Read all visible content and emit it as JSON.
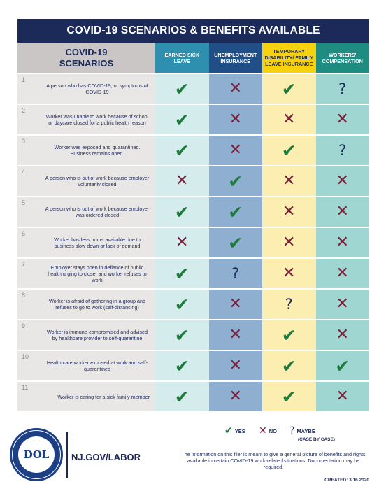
{
  "title": "COVID-19 SCENARIOS & BENEFITS AVAILABLE",
  "header": {
    "scenarios_line1": "COVID-19",
    "scenarios_line2": "SCENARIOS",
    "columns": [
      "EARNED SICK LEAVE",
      "UNEMPLOYMENT INSURANCE",
      "TEMPORARY DISABILITY/ FAMILY LEAVE INSURANCE",
      "WORKERS' COMPENSATION"
    ]
  },
  "symbols": {
    "yes": "✔",
    "no": "✕",
    "maybe": "?"
  },
  "rows": [
    {
      "num": "1",
      "text": "A person who has COVID-19, or symptoms of COVID-19",
      "marks": [
        "yes",
        "no",
        "yes",
        "maybe"
      ]
    },
    {
      "num": "2",
      "text": "Worker was unable to work because of school or daycare closed for a public health reason",
      "marks": [
        "yes",
        "no",
        "no",
        "no"
      ]
    },
    {
      "num": "3",
      "text": "Worker was exposed and quarantined. Business remains open.",
      "marks": [
        "yes",
        "no",
        "yes",
        "maybe"
      ]
    },
    {
      "num": "4",
      "text": "A person who is out of work because employer voluntarily closed",
      "marks": [
        "no",
        "yes",
        "no",
        "no"
      ]
    },
    {
      "num": "5",
      "text": "A person who is out of work because employer was ordered closed",
      "marks": [
        "yes",
        "yes",
        "no",
        "no"
      ]
    },
    {
      "num": "6",
      "text": "Worker has less hours available due to business slow down or lack of demand",
      "marks": [
        "no",
        "yes",
        "no",
        "no"
      ]
    },
    {
      "num": "7",
      "text": "Employer stays open in defiance of public health urging to close, and worker refuses to work",
      "marks": [
        "yes",
        "maybe",
        "no",
        "no"
      ]
    },
    {
      "num": "8",
      "text": "Worker is afraid of gathering in a group and refuses to go to work (self-distancing)",
      "marks": [
        "yes",
        "no",
        "maybe",
        "no"
      ]
    },
    {
      "num": "9",
      "text": "Worker is immune-compromised and advised by healthcare provider to self-quarantine",
      "marks": [
        "yes",
        "no",
        "yes",
        "no"
      ]
    },
    {
      "num": "10",
      "text": "Health care worker exposed at work and self-quarantined",
      "marks": [
        "yes",
        "no",
        "yes",
        "yes"
      ]
    },
    {
      "num": "11",
      "text": "Worker is caring for a sick family member",
      "marks": [
        "yes",
        "no",
        "yes",
        "no"
      ]
    }
  ],
  "legend": {
    "yes": "YES",
    "no": "NO",
    "maybe": "MAYBE",
    "maybe_sub": "(CASE BY CASE)"
  },
  "footer": {
    "logo_text": "DOL",
    "site": "NJ.GOV/LABOR",
    "disclaimer": "The information on this flier is meant to give a general picture of benefits and rights available in certain COVID-19 work-related situations. Documentation may be required.",
    "created": "CREATED: 3.16.2020"
  },
  "colors": {
    "navy": "#1c2a5a",
    "yes": "#1e7b3c",
    "no": "#7a1f3a",
    "col_sick_leave": "#2f8fae",
    "col_unemployment": "#1f4f86",
    "col_disability": "#f5d20d",
    "col_workers_comp": "#1f8c82"
  }
}
